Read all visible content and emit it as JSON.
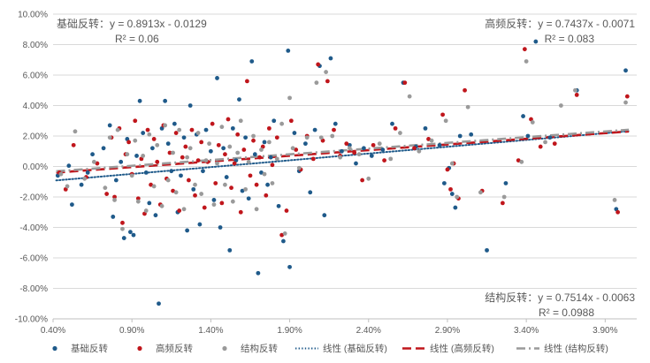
{
  "chart_data": {
    "type": "scatter",
    "xlim": [
      0.004,
      0.041
    ],
    "ylim": [
      -0.1,
      0.1
    ],
    "x_ticks": [
      0.004,
      0.009,
      0.014,
      0.019,
      0.024,
      0.029,
      0.034,
      0.039
    ],
    "x_tick_labels": [
      "0.40%",
      "0.90%",
      "1.40%",
      "1.90%",
      "2.40%",
      "2.90%",
      "3.40%",
      "3.90%"
    ],
    "y_ticks": [
      -0.1,
      -0.08,
      -0.06,
      -0.04,
      -0.02,
      0.0,
      0.02,
      0.04,
      0.06,
      0.08,
      0.1
    ],
    "y_tick_labels": [
      "-10.00%",
      "-8.00%",
      "-6.00%",
      "-4.00%",
      "-2.00%",
      "0.00%",
      "2.00%",
      "4.00%",
      "6.00%",
      "8.00%",
      "10.00%"
    ],
    "grid": "horizontal",
    "legend_position": "bottom",
    "series": [
      {
        "name": "基础反转",
        "color": "#1f5a8a",
        "points": [
          [
            0.0043,
            -0.006
          ],
          [
            0.005,
            0.0005
          ],
          [
            0.0052,
            -0.025
          ],
          [
            0.0058,
            -0.012
          ],
          [
            0.0062,
            -0.004
          ],
          [
            0.0065,
            0.008
          ],
          [
            0.0072,
            0.012
          ],
          [
            0.0076,
            0.027
          ],
          [
            0.0078,
            -0.033
          ],
          [
            0.008,
            -0.009
          ],
          [
            0.0083,
            0.003
          ],
          [
            0.0085,
            -0.047
          ],
          [
            0.0087,
            0.018
          ],
          [
            0.0089,
            -0.043
          ],
          [
            0.0091,
            -0.045
          ],
          [
            0.0093,
            0.007
          ],
          [
            0.0095,
            0.043
          ],
          [
            0.0097,
            0.022
          ],
          [
            0.0099,
            -0.004
          ],
          [
            0.0101,
            -0.024
          ],
          [
            0.0103,
            0.012
          ],
          [
            0.0105,
            -0.032
          ],
          [
            0.0107,
            -0.09
          ],
          [
            0.0109,
            0.025
          ],
          [
            0.0111,
            0.043
          ],
          [
            0.0113,
            0.015
          ],
          [
            0.0115,
            -0.003
          ],
          [
            0.0117,
            0.028
          ],
          [
            0.0119,
            -0.03
          ],
          [
            0.0121,
            -0.006
          ],
          [
            0.0123,
            0.019
          ],
          [
            0.0125,
            -0.042
          ],
          [
            0.0127,
            0.04
          ],
          [
            0.0129,
            -0.015
          ],
          [
            0.0131,
            0.021
          ],
          [
            0.0133,
            -0.038
          ],
          [
            0.0135,
            -0.003
          ],
          [
            0.0137,
            0.024
          ],
          [
            0.014,
            0.01
          ],
          [
            0.0142,
            -0.022
          ],
          [
            0.0144,
            0.058
          ],
          [
            0.0146,
            -0.04
          ],
          [
            0.0148,
            0.012
          ],
          [
            0.015,
            -0.007
          ],
          [
            0.0152,
            -0.055
          ],
          [
            0.0154,
            0.025
          ],
          [
            0.0156,
            0.004
          ],
          [
            0.0158,
            0.044
          ],
          [
            0.016,
            -0.016
          ],
          [
            0.0162,
            0.019
          ],
          [
            0.0164,
            -0.021
          ],
          [
            0.0166,
            0.069
          ],
          [
            0.0168,
            0.008
          ],
          [
            0.017,
            -0.07
          ],
          [
            0.0172,
            -0.004
          ],
          [
            0.0174,
            0.016
          ],
          [
            0.0176,
            -0.012
          ],
          [
            0.0178,
            0.006
          ],
          [
            0.018,
            0.03
          ],
          [
            0.0183,
            -0.026
          ],
          [
            0.0186,
            -0.049
          ],
          [
            0.0189,
            0.076
          ],
          [
            0.019,
            -0.066
          ],
          [
            0.0193,
            0.022
          ],
          [
            0.0196,
            -0.003
          ],
          [
            0.02,
            0.015
          ],
          [
            0.0203,
            -0.017
          ],
          [
            0.0206,
            0.024
          ],
          [
            0.0209,
            0.066
          ],
          [
            0.0212,
            -0.032
          ],
          [
            0.0216,
            0.071
          ],
          [
            0.0219,
            0.028
          ],
          [
            0.0223,
            0.01
          ],
          [
            0.0228,
            0.014
          ],
          [
            0.0232,
            0.002
          ],
          [
            0.0237,
            0.012
          ],
          [
            0.0242,
            0.007
          ],
          [
            0.0249,
            0.011
          ],
          [
            0.0255,
            0.028
          ],
          [
            0.0262,
            0.055
          ],
          [
            0.027,
            0.013
          ],
          [
            0.0276,
            0.025
          ],
          [
            0.0285,
            0.014
          ],
          [
            0.0288,
            -0.011
          ],
          [
            0.0291,
            -0.001
          ],
          [
            0.0293,
            -0.018
          ],
          [
            0.0295,
            -0.027
          ],
          [
            0.0298,
            0.02
          ],
          [
            0.0305,
            0.021
          ],
          [
            0.0315,
            -0.055
          ],
          [
            0.0327,
            -0.011
          ],
          [
            0.0338,
            0.033
          ],
          [
            0.0341,
            0.02
          ],
          [
            0.0346,
            0.082
          ],
          [
            0.0355,
            0.019
          ],
          [
            0.0372,
            0.05
          ],
          [
            0.0397,
            -0.028
          ],
          [
            0.0403,
            0.063
          ]
        ]
      },
      {
        "name": "高频反转",
        "color": "#c0161c",
        "points": [
          [
            0.0044,
            -0.004
          ],
          [
            0.0048,
            -0.015
          ],
          [
            0.0053,
            0.014
          ],
          [
            0.0061,
            -0.007
          ],
          [
            0.0068,
            0.002
          ],
          [
            0.0074,
            -0.018
          ],
          [
            0.0077,
            0.019
          ],
          [
            0.0079,
            -0.02
          ],
          [
            0.0082,
            0.025
          ],
          [
            0.0084,
            -0.037
          ],
          [
            0.0086,
            0.008
          ],
          [
            0.0088,
            0.016
          ],
          [
            0.009,
            -0.005
          ],
          [
            0.0092,
            0.03
          ],
          [
            0.0094,
            -0.021
          ],
          [
            0.0096,
            0.005
          ],
          [
            0.0098,
            -0.031
          ],
          [
            0.01,
            0.024
          ],
          [
            0.0102,
            -0.012
          ],
          [
            0.0104,
            0.018
          ],
          [
            0.0106,
            0.003
          ],
          [
            0.0108,
            -0.025
          ],
          [
            0.011,
            0.027
          ],
          [
            0.0112,
            -0.008
          ],
          [
            0.0114,
            0.009
          ],
          [
            0.0116,
            -0.016
          ],
          [
            0.0118,
            0.022
          ],
          [
            0.012,
            -0.029
          ],
          [
            0.0122,
            0.006
          ],
          [
            0.0124,
            0.013
          ],
          [
            0.0126,
            -0.009
          ],
          [
            0.0128,
            0.024
          ],
          [
            0.013,
            -0.019
          ],
          [
            0.0132,
            0.004
          ],
          [
            0.0134,
            0.016
          ],
          [
            0.0136,
            -0.027
          ],
          [
            0.0138,
            0.003
          ],
          [
            0.0141,
            0.028
          ],
          [
            0.0143,
            -0.011
          ],
          [
            0.0145,
            0.014
          ],
          [
            0.0147,
            -0.024
          ],
          [
            0.0149,
            0.008
          ],
          [
            0.0151,
            0.031
          ],
          [
            0.0153,
            -0.014
          ],
          [
            0.0155,
            0.002
          ],
          [
            0.0157,
            0.021
          ],
          [
            0.0159,
            -0.03
          ],
          [
            0.0161,
            0.011
          ],
          [
            0.0163,
            0.056
          ],
          [
            0.0165,
            -0.006
          ],
          [
            0.0167,
            0.017
          ],
          [
            0.0169,
            -0.012
          ],
          [
            0.0171,
            0.006
          ],
          [
            0.0173,
            0.013
          ],
          [
            0.0175,
            -0.019
          ],
          [
            0.0177,
            0.025
          ],
          [
            0.0179,
            0.001
          ],
          [
            0.0182,
            0.019
          ],
          [
            0.0185,
            -0.045
          ],
          [
            0.0188,
            -0.029
          ],
          [
            0.0191,
            0.03
          ],
          [
            0.0194,
            0.011
          ],
          [
            0.0197,
            -0.002
          ],
          [
            0.0201,
            0.02
          ],
          [
            0.0205,
            0.005
          ],
          [
            0.0208,
            0.067
          ],
          [
            0.0211,
            0.017
          ],
          [
            0.0214,
            0.056
          ],
          [
            0.0218,
            0.024
          ],
          [
            0.0222,
            0.007
          ],
          [
            0.0226,
            0.015
          ],
          [
            0.0231,
            0.009
          ],
          [
            0.0236,
            -0.009
          ],
          [
            0.0243,
            0.014
          ],
          [
            0.025,
            0.004
          ],
          [
            0.0257,
            0.025
          ],
          [
            0.0263,
            0.055
          ],
          [
            0.0269,
            0.012
          ],
          [
            0.0278,
            0.018
          ],
          [
            0.0287,
            0.034
          ],
          [
            0.029,
            -0.002
          ],
          [
            0.0292,
            -0.015
          ],
          [
            0.0294,
            0.002
          ],
          [
            0.0297,
            -0.021
          ],
          [
            0.0301,
            0.05
          ],
          [
            0.0312,
            -0.016
          ],
          [
            0.0325,
            -0.024
          ],
          [
            0.0335,
            0.004
          ],
          [
            0.0339,
            0.077
          ],
          [
            0.0343,
            0.031
          ],
          [
            0.0349,
            0.013
          ],
          [
            0.0358,
            0.015
          ],
          [
            0.0372,
            0.047
          ],
          [
            0.0398,
            -0.03
          ],
          [
            0.0404,
            0.046
          ]
        ]
      },
      {
        "name": "结构反转",
        "color": "#9a9a9a",
        "points": [
          [
            0.0045,
            -0.005
          ],
          [
            0.0049,
            -0.013
          ],
          [
            0.0054,
            0.023
          ],
          [
            0.006,
            -0.008
          ],
          [
            0.0066,
            0.003
          ],
          [
            0.0073,
            -0.014
          ],
          [
            0.0076,
            0.019
          ],
          [
            0.0079,
            -0.022
          ],
          [
            0.0081,
            0.024
          ],
          [
            0.0084,
            -0.041
          ],
          [
            0.0087,
            0.008
          ],
          [
            0.009,
            -0.006
          ],
          [
            0.0092,
            0.017
          ],
          [
            0.0094,
            -0.023
          ],
          [
            0.0097,
            0.007
          ],
          [
            0.0099,
            -0.029
          ],
          [
            0.0101,
            0.021
          ],
          [
            0.0104,
            -0.013
          ],
          [
            0.0106,
            0.014
          ],
          [
            0.0109,
            -0.026
          ],
          [
            0.0111,
            0.027
          ],
          [
            0.0113,
            -0.009
          ],
          [
            0.0116,
            0.009
          ],
          [
            0.0118,
            -0.017
          ],
          [
            0.012,
            0.024
          ],
          [
            0.0123,
            -0.028
          ],
          [
            0.0125,
            0.006
          ],
          [
            0.0127,
            0.012
          ],
          [
            0.013,
            -0.012
          ],
          [
            0.0132,
            0.022
          ],
          [
            0.0134,
            -0.018
          ],
          [
            0.0137,
            0.004
          ],
          [
            0.0139,
            0.015
          ],
          [
            0.0142,
            -0.025
          ],
          [
            0.0144,
            0.002
          ],
          [
            0.0147,
            0.026
          ],
          [
            0.0149,
            -0.012
          ],
          [
            0.0152,
            0.013
          ],
          [
            0.0154,
            -0.023
          ],
          [
            0.0157,
            0.009
          ],
          [
            0.0159,
            0.03
          ],
          [
            0.0162,
            -0.015
          ],
          [
            0.0164,
            0.003
          ],
          [
            0.0167,
            0.02
          ],
          [
            0.0169,
            -0.028
          ],
          [
            0.0172,
            0.011
          ],
          [
            0.0174,
            -0.005
          ],
          [
            0.0177,
            0.016
          ],
          [
            0.0179,
            -0.011
          ],
          [
            0.0182,
            0.005
          ],
          [
            0.0185,
            0.028
          ],
          [
            0.0187,
            -0.044
          ],
          [
            0.019,
            0.045
          ],
          [
            0.0192,
            0.012
          ],
          [
            0.0196,
            -0.001
          ],
          [
            0.0201,
            0.019
          ],
          [
            0.0207,
            0.055
          ],
          [
            0.021,
            0.019
          ],
          [
            0.0213,
            0.062
          ],
          [
            0.0217,
            0.02
          ],
          [
            0.0222,
            0.006
          ],
          [
            0.0228,
            0.012
          ],
          [
            0.0234,
            0.008
          ],
          [
            0.024,
            -0.008
          ],
          [
            0.0247,
            0.015
          ],
          [
            0.0254,
            0.005
          ],
          [
            0.026,
            0.022
          ],
          [
            0.0266,
            0.046
          ],
          [
            0.0272,
            0.01
          ],
          [
            0.028,
            0.017
          ],
          [
            0.0289,
            0.03
          ],
          [
            0.0293,
            0.002
          ],
          [
            0.0296,
            -0.02
          ],
          [
            0.0303,
            0.039
          ],
          [
            0.0311,
            -0.017
          ],
          [
            0.0326,
            -0.02
          ],
          [
            0.0337,
            0.003
          ],
          [
            0.034,
            0.069
          ],
          [
            0.0344,
            0.029
          ],
          [
            0.0352,
            0.016
          ],
          [
            0.0362,
            0.04
          ],
          [
            0.0371,
            0.05
          ],
          [
            0.0396,
            -0.022
          ],
          [
            0.0403,
            0.042
          ]
        ]
      }
    ],
    "trendlines": [
      {
        "name": "线性 (基础反转)",
        "slope": 0.8913,
        "intercept": -0.0129,
        "color": "#1f5a8a",
        "dash": "dotted",
        "equation": "基础反转：y = 0.8913x - 0.0129",
        "r2": "R² = 0.06"
      },
      {
        "name": "线性 (高频反转)",
        "slope": 0.7437,
        "intercept": -0.0071,
        "color": "#c0161c",
        "dash": "dashed",
        "equation": "高频反转：y = 0.7437x - 0.0071",
        "r2": "R² = 0.083"
      },
      {
        "name": "线性 (结构反转)",
        "slope": 0.7514,
        "intercept": -0.0063,
        "color": "#9a9a9a",
        "dash": "dashdot",
        "equation": "结构反转：y = 0.7514x - 0.0063",
        "r2": "R² = 0.0988"
      }
    ]
  }
}
